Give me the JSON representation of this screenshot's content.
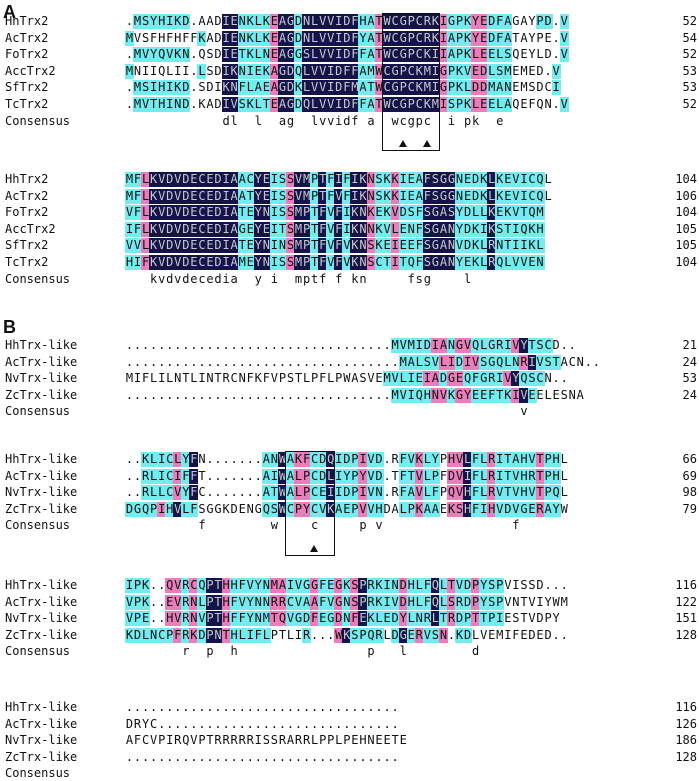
{
  "panels": [
    {
      "label": "A",
      "blocks": [
        {
          "rows": [
            {
              "name": "HhTrx2",
              "seq": ".MSYHIKD.AADIENKLKEAGDNLVVIDFHATWCGPCRKIGPKYEDFAGAYPD.V",
              "num": "52",
              "style": "ccccccccc...ddccccpddcdddddddccpdddddddpcccppccc...ccccp"
            },
            {
              "name": "AcTrx2",
              "seq": "MVSFHFHFFKADIENKLKEAGDNLVVIDFYATWCGPCRKIAPKYEDFATAYPE.V",
              "num": "54",
              "style": "c........c..ddccccpddcdddddddccpdddddddpcccppccc.....ccp"
            },
            {
              "name": "FoTrx2",
              "seq": ".MVYQVKN.QSDIETKLNEAGGSLVVIDFFATWCGPCKIIAPKLEELSQEYLD.V",
              "num": "52",
              "style": "ccccccccc...ddccccpddcdddddddccpdddddddpcccppccc.....ccp"
            },
            {
              "name": "AccTrx2",
              "seq": "MNIIQLII.LSDIKNIEKAGDQLVVIDFFAMWCGPCKMIGPKVEDLSMEMED.V",
              "num": "53",
              "style": "c........c..ddccccpddcdddddddccpdddddddpcccppccc.....ccp"
            },
            {
              "name": "SfTrx2",
              "seq": ".MSIHIKD.SDIKNFLAEAGDKLVVIDFMATWCGPCKMIGPKLDDMANEMSDCI",
              "num": "53",
              "style": "ccccccccc...ddccccpddcdddddddccpdddddddpcccppccc.....cc"
            },
            {
              "name": "TcTrx2",
              "seq": ".MVTHIND.KADIVSKLTEAGDQLVVIDFFATWCGPCKMISPKLEELAQEFQN.V",
              "num": "52",
              "style": "ccccccccc...ddccccpddcdddddddccpdddddddpcccppccc.....ccp"
            },
            {
              "name": "Consensus",
              "seq": "            dl  l  ag  lvvidf a  wcgpc  i pk  e",
              "num": ""
            }
          ],
          "motif": {
            "start": 32,
            "end": 38
          },
          "markers": [
            34,
            37
          ]
        },
        {
          "rows": [
            {
              "name": "HhTrx2",
              "seq": "MFLKVDVDECEDIAACYEISSVMPTFIFIKNSKKIEAFSGGNEDKLKEVICQL",
              "num": "104",
              "style": "ccpdddddddddddccddccpddcdcdcddpccpcccddddccccdcccccc"
            },
            {
              "name": "AcTrx2",
              "seq": "MFLKVDVDECEDIAATYEISSVMPTFVFIKNSKKIEAFSGGNEDKLKEVICQL",
              "num": "106",
              "style": "ccpdddddddddddccddccpddcdcdcddpccpcccddddccccdcccccc"
            },
            {
              "name": "FoTrx2",
              "seq": "VFLKVDVDECEDIATEYNISSMPTFVFIKNKEKVDSFSGASYDLLKEKVTQM",
              "num": "104",
              "style": "ccpdddddddddddccddccpddcdcdcddpccpcccddddccccdcccccc"
            },
            {
              "name": "AccTrx2",
              "seq": "IFLKVDVDECEDIAGEYEITSMPTFVFIKNNKVLENFSGANYDKIKSTIQKH",
              "num": "105",
              "style": "ccpdddddddddddccddccpddcdcdcddpccpcccddddccccdcccccc"
            },
            {
              "name": "SfTrx2",
              "seq": "VVLKVDVDECEDIATEYNINSMPTFVFVKNSKEIEEFSGANVDKLRNTIIKL",
              "num": "105",
              "style": "ccpdddddddddddccddccpddcdcdcddpccpcccddddccccdcccccc"
            },
            {
              "name": "TcTrx2",
              "seq": "HIFKVDVDECEDIAMEYNISSMPTFVFVKNSCTITQFSGANYEKLRQLVVEN",
              "num": "104",
              "style": "ccpdddddddddddccddccpddcdcdcddpccpcccddddccccdcccccc"
            },
            {
              "name": "Consensus",
              "seq": "   kvdvdecedia  y i  mptf f kn     fsg    l",
              "num": ""
            }
          ]
        }
      ]
    },
    {
      "label": "B",
      "blocks": [
        {
          "rows": [
            {
              "name": "HhTrx-like",
              "seq": ".................................MVMIDIANGVQLGRIVYTSCD..",
              "num": "21",
              "style": "                                 cccccppcppcccccpdccc"
            },
            {
              "name": "AcTrx-like",
              "seq": "..................................MALSVLIDIVSGQLNRIVSTACN..",
              "num": "24",
              "style": "                                  cccccppcppcccccpdccc"
            },
            {
              "name": "NvTrx-like",
              "seq": "MIFLILNTLINTRCNFKFVPSTLPFLPWASVEMVLIEIADGEQFGRIVYQSCN..",
              "num": "53",
              "style": "                                cccccppcppcccccpdccc"
            },
            {
              "name": "ZcTrx-like",
              "seq": ".................................MVIQHNVKGYEEFTKIVEELESNA",
              "num": "24",
              "style": "                                 cccccppcppcccccpdc"
            },
            {
              "name": "Consensus",
              "seq": "                                                 v",
              "num": ""
            }
          ]
        },
        {
          "rows": [
            {
              "name": "HhTrx-like",
              "seq": "..KLICLYFN.......ANWAKFCDQIDPIVD.RFVKLYPHVLFLRITAHVTPHL",
              "num": "66",
              "style": "  ccccpcd        ccdcppccdcccpcc  ccpcc ppdccpcccccpcc"
            },
            {
              "name": "AcTrx-like",
              "seq": "..RLICIFFT.......AIWALPCDLIYPYVD.TFTVLPFDVIFLRITVHRTPHL",
              "num": "69",
              "style": "  ccccpcd        ccdcppccdcccpcc  ccpcc ppdccpcccccpcc"
            },
            {
              "name": "NvTrx-like",
              "seq": "..RLLCVYFC.......ATWALPCEIIDPIVN.RFAVLFPQVHFLRVTVHVTPQL",
              "num": "98",
              "style": "  ccccpcd        ccdcppccdcccpcc  ccpcc ppdccpcccccpcc"
            },
            {
              "name": "ZcTrx-like",
              "seq": "DGQPIHVLFSGGKDENGQSWCPYCVKAEPVVHDALPKAAEKSHFIHVDVGERAYW",
              "num": "79",
              "style": "ccccpcdcc        ccdcppccdcccpcc  ccpcc ppdccpcccccpcc"
            },
            {
              "name": "Consensus",
              "seq": "         f        w    c     p v                f",
              "num": ""
            }
          ],
          "motif": {
            "start": 20,
            "end": 25
          },
          "markers": [
            23
          ]
        },
        {
          "rows": [
            {
              "name": "HhTrx-like",
              "seq": "IPK..QVRCQPTHHFVYNMAIVGGFEGKSPRKINDHLFQLTVDPYSPVISSD...",
              "num": "116",
              "style": "ccc  ppcpcddpcccccppcccpccpcpdccccpcccdcpccpccc"
            },
            {
              "name": "AcTrx-like",
              "seq": "VPK..EVRNLPTHFVYNNRRCVAAFVGNSPRKIVDHLFQLSRDPYSPVNTVIYWM",
              "num": "122",
              "style": "ccc  ppcpcddpcccccppcccpccpcpdccccpcccdcpccpccc"
            },
            {
              "name": "NvTrx-like",
              "seq": "VPE..HVRNVPTHFFYNMTQVGDFEGDNFEKLEDYLNRLTRDPTTPIESTVDPY",
              "num": "151",
              "style": "ccc  ppcpcddpcccccppcccpccpcpdccccpcccdcpccpccc"
            },
            {
              "name": "ZcTrx-like",
              "seq": "KDLNCPFRKDPNTHLIFLPTLIR...WKSPQRLDGERVSN.KDLVEMIFEDED..",
              "num": "128",
              "style": "ccccccpcpcddpccccc    ccpcpdcccc cdcpccpccc"
            },
            {
              "name": "Consensus",
              "seq": "       r  p  h                p   l        d",
              "num": ""
            }
          ]
        },
        {
          "rows": [
            {
              "name": "HhTrx-like",
              "seq": "..................................",
              "num": "116",
              "style": ""
            },
            {
              "name": "AcTrx-like",
              "seq": "DRYC..............................",
              "num": "126",
              "style": ""
            },
            {
              "name": "NvTrx-like",
              "seq": "AFCVPIRQVPTRRRRRISSRARRLPPLPEHNEETE",
              "num": "186",
              "style": ""
            },
            {
              "name": "ZcTrx-like",
              "seq": "..................................",
              "num": "128",
              "style": ""
            },
            {
              "name": "Consensus",
              "seq": "",
              "num": ""
            }
          ]
        }
      ]
    }
  ],
  "colors": {
    "identical": "#14144a",
    "high": "#ec7dbb",
    "similar": "#72ecef"
  }
}
